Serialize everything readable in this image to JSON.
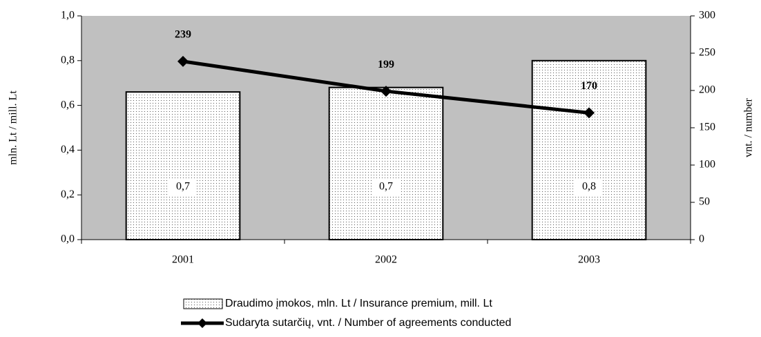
{
  "chart_data": {
    "type": "bar-line",
    "categories": [
      "2001",
      "2002",
      "2003"
    ],
    "series": [
      {
        "name": "Draudimo įmokos, mln. Lt / Insurance premium, mill. Lt",
        "type": "bar",
        "color": "#ffffff",
        "values": [
          0.66,
          0.68,
          0.8
        ],
        "value_labels": [
          "0,7",
          "0,7",
          "0,8"
        ]
      },
      {
        "name": "Sudaryta sutarčių, vnt. / Number of agreements conducted",
        "type": "line",
        "axis": "y2",
        "color": "#000000",
        "values": [
          239,
          199,
          170
        ]
      }
    ],
    "ylabel": "mln. Lt / mill. Lt",
    "y2label": "vnt. / number",
    "ylim": [
      0,
      1
    ],
    "yticks": [
      {
        "value": 0,
        "label": "0,0"
      },
      {
        "value": 0.2,
        "label": "0,2"
      },
      {
        "value": 0.4,
        "label": "0,4"
      },
      {
        "value": 0.6,
        "label": "0,6"
      },
      {
        "value": 0.8,
        "label": "0,8"
      },
      {
        "value": 1,
        "label": "1,0"
      }
    ],
    "y2lim": [
      0,
      300
    ],
    "y2ticks": [
      0,
      50,
      100,
      150,
      200,
      250,
      300
    ],
    "plot_background": "#c0c0c0",
    "legend": "bottom"
  }
}
